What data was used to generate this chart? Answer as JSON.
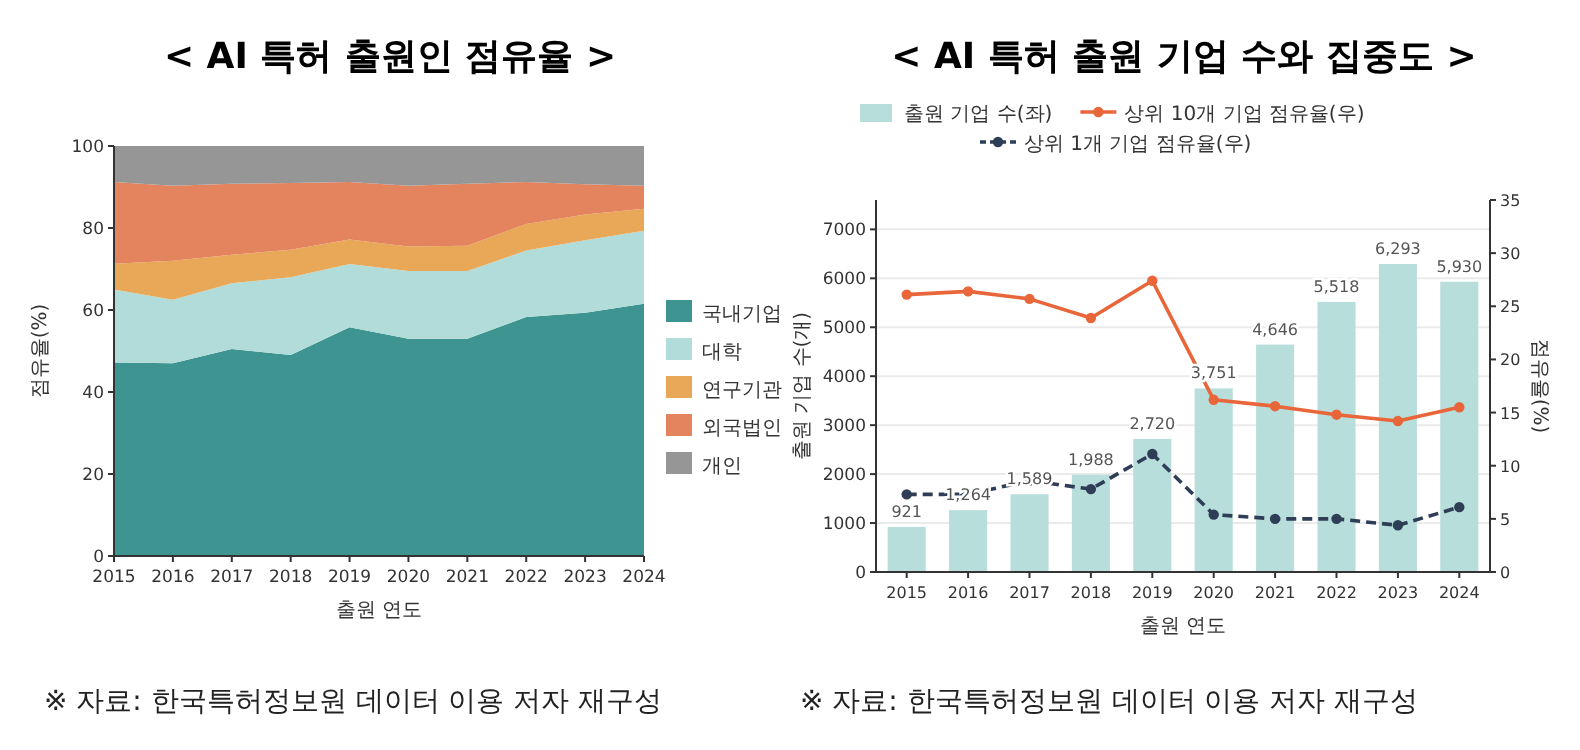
{
  "chart_data": [
    {
      "type": "area",
      "stacked": true,
      "title": "< AI 특허 출원인 점유율 >",
      "xlabel": "출원 연도",
      "ylabel": "점유율(%)",
      "x": [
        2015,
        2016,
        2017,
        2018,
        2019,
        2020,
        2021,
        2022,
        2023,
        2024
      ],
      "xlim": [
        2015,
        2024
      ],
      "xticks": [
        2015,
        2016,
        2017,
        2018,
        2019,
        2020,
        2021,
        2022,
        2023,
        2024
      ],
      "ylim": [
        0,
        100
      ],
      "yticks": [
        0,
        20,
        40,
        60,
        80,
        100
      ],
      "legend": "right",
      "series": [
        {
          "name": "국내기업",
          "color": "#3e9490",
          "values": [
            47.2,
            47,
            50.5,
            49,
            55.8,
            53,
            53,
            58.3,
            59.3,
            61.5
          ]
        },
        {
          "name": "대학",
          "color": "#b2dcd9",
          "values": [
            17.8,
            15.5,
            16,
            19,
            15.4,
            16.5,
            16.5,
            16.2,
            17.7,
            17.8
          ]
        },
        {
          "name": "연구기관",
          "color": "#e9a857",
          "values": [
            6.3,
            9.5,
            7,
            6.7,
            6,
            6,
            6.2,
            6.5,
            6.3,
            5.4
          ]
        },
        {
          "name": "외국법인",
          "color": "#e4845f",
          "values": [
            19.9,
            18.3,
            17.3,
            16.3,
            14,
            14.8,
            15.1,
            10.2,
            7.4,
            5.6
          ]
        },
        {
          "name": "개인",
          "color": "#969696",
          "values": [
            8.8,
            9.7,
            9.2,
            9,
            8.8,
            9.7,
            9.2,
            8.8,
            9.3,
            9.7
          ]
        }
      ],
      "annotations": [
        "※ 자료: 한국특허정보원 데이터 이용 저자 재구성"
      ]
    },
    {
      "type": "bar",
      "title": "< AI 특허 출원 기업 수와 집중도 >",
      "xlabel": "출원 연도",
      "ylabel": "출원 기업 수(개)",
      "y2label": "점유율(%)",
      "categories": [
        "2015",
        "2016",
        "2017",
        "2018",
        "2019",
        "2020",
        "2021",
        "2022",
        "2023",
        "2024"
      ],
      "ylim": [
        0,
        7600
      ],
      "yticks": [
        0,
        1000,
        2000,
        3000,
        4000,
        5000,
        6000,
        7000
      ],
      "y2lim": [
        0,
        35
      ],
      "y2ticks": [
        0,
        5,
        10,
        15,
        20,
        25,
        30,
        35
      ],
      "grid": "y",
      "legend": "top",
      "series": [
        {
          "name": "출원 기업 수(좌)",
          "type": "bar",
          "color": "#b7dedb",
          "values": [
            921,
            1264,
            1589,
            1988,
            2720,
            3751,
            4646,
            5518,
            6293,
            5930
          ],
          "value_labels": [
            "921",
            "1,264",
            "1,589",
            "1,988",
            "2,720",
            "3,751",
            "4,646",
            "5,518",
            "6,293",
            "5,930"
          ]
        },
        {
          "name": "상위 10개 기업 점유율(우)",
          "type": "line",
          "axis": "y2",
          "color": "#e8663a",
          "marker": "circle",
          "line_style": "solid",
          "values": [
            26.1,
            26.4,
            25.7,
            23.9,
            27.4,
            16.2,
            15.6,
            14.8,
            14.2,
            15.5
          ]
        },
        {
          "name": "상위 1개 기업 점유율(우)",
          "type": "line",
          "axis": "y2",
          "color": "#2d3e56",
          "marker": "circle",
          "line_style": "dashed",
          "values": [
            7.3,
            7.3,
            8.6,
            7.8,
            11.1,
            5.4,
            5.0,
            5.0,
            4.4,
            6.1
          ]
        }
      ],
      "annotations": [
        "※ 자료: 한국특허정보원 데이터 이용 저자 재구성"
      ]
    }
  ]
}
